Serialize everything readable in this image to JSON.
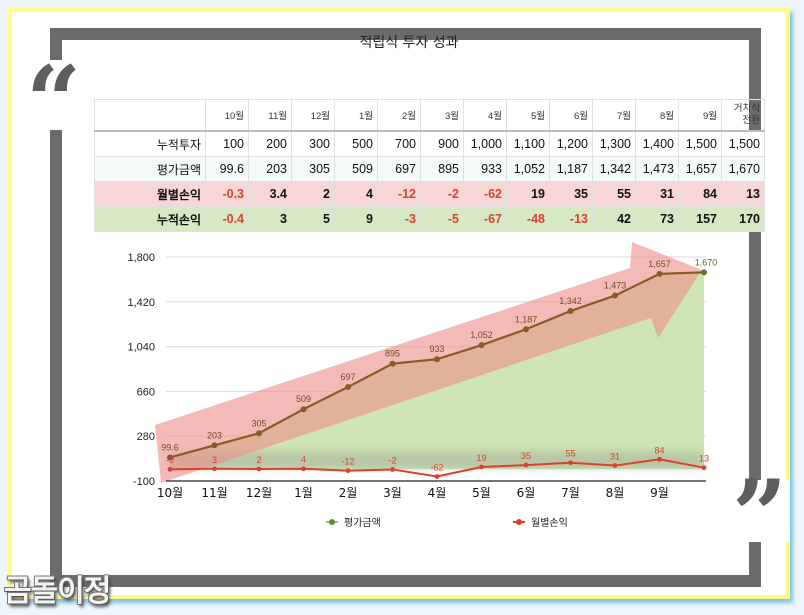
{
  "title": "적립식 투자 성과",
  "watermark": "곰돌이정",
  "decor": {
    "open_quote": "“",
    "close_quote": "”"
  },
  "table": {
    "columns": [
      "10월",
      "11월",
      "12월",
      "1월",
      "2월",
      "3월",
      "4월",
      "5월",
      "6월",
      "7월",
      "8월",
      "9월",
      "거치식 전환"
    ],
    "last_column_lines": [
      "거치식",
      "전환"
    ],
    "rows": [
      {
        "label": "누적투자",
        "values": [
          "100",
          "200",
          "300",
          "500",
          "700",
          "900",
          "1,000",
          "1,100",
          "1,200",
          "1,300",
          "1,400",
          "1,500",
          "1,500"
        ]
      },
      {
        "label": "평가금액",
        "values": [
          "99.6",
          "203",
          "305",
          "509",
          "697",
          "895",
          "933",
          "1,052",
          "1,187",
          "1,342",
          "1,473",
          "1,657",
          "1,670"
        ]
      },
      {
        "label": "월별손익",
        "values": [
          "-0.3",
          "3.4",
          "2",
          "4",
          "-12",
          "-2",
          "-62",
          "19",
          "35",
          "55",
          "31",
          "84",
          "13"
        ]
      },
      {
        "label": "누적손익",
        "values": [
          "-0.4",
          "3",
          "5",
          "9",
          "-3",
          "-5",
          "-67",
          "-48",
          "-13",
          "42",
          "73",
          "157",
          "170"
        ]
      }
    ]
  },
  "colors": {
    "eval_line": "#8a5a26",
    "eval_marker_last": "#5d7a2a",
    "eval_area": "#cfe6b4",
    "monthly_line": "#d9412f",
    "arrow": "#ee9593",
    "negative_text": "#d9412f",
    "frame": "#6b6b6b",
    "card_border": "#fdfb8a"
  },
  "chart_data": {
    "type": "line",
    "title": "",
    "x": [
      "10월",
      "11월",
      "12월",
      "1월",
      "2월",
      "3월",
      "4월",
      "5월",
      "6월",
      "7월",
      "8월",
      "9월",
      ""
    ],
    "yticks": [
      -100,
      280,
      660,
      1040,
      1420,
      1800
    ],
    "ytick_labels": [
      "-100",
      "280",
      "660",
      "1,040",
      "1,420",
      "1,800"
    ],
    "ylim": [
      -100,
      1800
    ],
    "grid": true,
    "legend_position": "bottom",
    "series": [
      {
        "name": "평가금액",
        "values": [
          99.6,
          203,
          305,
          509,
          697,
          895,
          933,
          1052,
          1187,
          1342,
          1473,
          1657,
          1670
        ],
        "labels": [
          "99.6",
          "203",
          "305",
          "509",
          "697",
          "895",
          "933",
          "1,052",
          "1,187",
          "1,342",
          "1,473",
          "1,657",
          "1,670"
        ],
        "style": "area+line"
      },
      {
        "name": "월별손익",
        "values": [
          -0.3,
          3.4,
          2,
          4,
          -12,
          -2,
          -62,
          19,
          35,
          55,
          31,
          84,
          13
        ],
        "labels": [
          "-0",
          "3",
          "2",
          "4",
          "-12",
          "-2",
          "-62",
          "19",
          "35",
          "55",
          "31",
          "84",
          "13"
        ],
        "style": "line"
      }
    ],
    "annotations": [
      "upward trend arrow (translucent red) over the 평가금액 series"
    ]
  },
  "legend": [
    {
      "label": "평가금액",
      "color": "#5d8a2e"
    },
    {
      "label": "월별손익",
      "color": "#d9412f"
    }
  ]
}
